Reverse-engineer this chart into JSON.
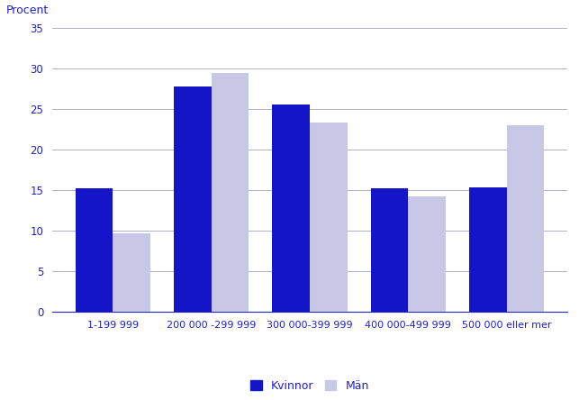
{
  "categories": [
    "1-199 999",
    "200 000 -299 999",
    "300 000-399 999",
    "400 000-499 999",
    "500 000 eller mer"
  ],
  "kvinnor": [
    15.2,
    27.8,
    25.6,
    15.2,
    15.4
  ],
  "man": [
    9.7,
    29.5,
    23.4,
    14.3,
    23.0
  ],
  "bar_color_kvinnor": "#1414c8",
  "bar_color_man": "#c8c8e6",
  "ylabel": "Procent",
  "ylim": [
    0,
    35
  ],
  "yticks": [
    0,
    5,
    10,
    15,
    20,
    25,
    30,
    35
  ],
  "legend_labels": [
    "Kvinnor",
    "Män"
  ],
  "background_color": "#ffffff",
  "grid_color": "#b0b0cc",
  "text_color": "#2020cc",
  "bar_width": 0.38
}
